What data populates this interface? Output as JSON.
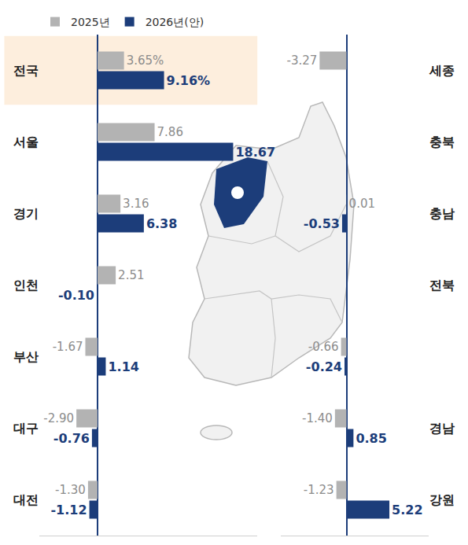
{
  "chart_data": [
    {
      "type": "bar",
      "orientation": "horizontal",
      "data_labels": true,
      "tick_labels": "y",
      "grid": false,
      "legend": "top left",
      "categories": [
        "전국",
        "서울",
        "경기",
        "인천",
        "부산",
        "대구",
        "대전"
      ],
      "series": [
        {
          "name": "2025년",
          "color": "#b3b3b3",
          "values": [
            3.65,
            7.86,
            3.16,
            2.51,
            -1.67,
            -2.9,
            -1.3
          ],
          "value_labels": [
            "3.65%",
            "7.86",
            "3.16",
            "2.51",
            "-1.67",
            "-2.90",
            "-1.30"
          ]
        },
        {
          "name": "2026년(안)",
          "color": "#1c3d7a",
          "values": [
            9.16,
            18.67,
            6.38,
            -0.1,
            1.14,
            -0.76,
            -1.12
          ],
          "value_labels": [
            "9.16%",
            "18.67",
            "6.38",
            "-0.10",
            "1.14",
            "-0.76",
            "-1.12"
          ]
        }
      ],
      "xlim": [
        -8,
        22
      ]
    },
    {
      "type": "bar",
      "orientation": "horizontal",
      "data_labels": true,
      "tick_labels": "y",
      "grid": false,
      "categories": [
        "세종",
        "충북",
        "충남",
        "전북",
        null,
        "경남",
        "강원"
      ],
      "series": [
        {
          "name": "2025년",
          "color": "#b3b3b3",
          "values": [
            -3.27,
            null,
            0.01,
            null,
            -0.66,
            -1.4,
            -1.23
          ],
          "value_labels": [
            "-3.27",
            null,
            "0.01",
            null,
            "-0.66",
            "-1.40",
            "-1.23"
          ]
        },
        {
          "name": "2026년(안)",
          "color": "#1c3d7a",
          "values": [
            null,
            null,
            -0.53,
            null,
            -0.24,
            0.85,
            5.22
          ],
          "value_labels": [
            null,
            null,
            "-0.53",
            null,
            "-0.24",
            "0.85",
            "5.22"
          ]
        }
      ],
      "xlim": [
        -8,
        10
      ]
    }
  ]
}
